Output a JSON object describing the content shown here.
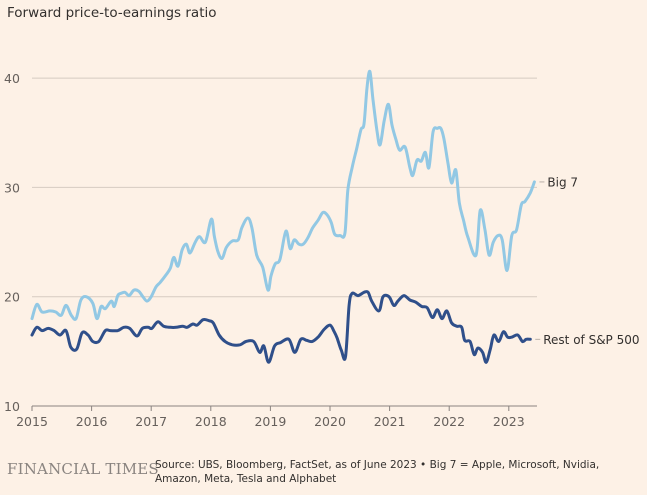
{
  "chart_data": {
    "type": "line",
    "title": "Forward price-to-earnings ratio",
    "xlabel": "",
    "ylabel": "",
    "ylim": [
      10,
      42
    ],
    "xlim": [
      2015,
      2023.6
    ],
    "grid": true,
    "yticks": [
      10,
      20,
      30,
      40
    ],
    "xticks": [
      2015,
      2016,
      2017,
      2018,
      2019,
      2020,
      2021,
      2022,
      2023
    ],
    "legend": "direct-labels-right",
    "series": [
      {
        "name": "Big 7",
        "color": "#92c8e4",
        "x": [
          2015.0,
          2015.08,
          2015.17,
          2015.3,
          2015.4,
          2015.49,
          2015.57,
          2015.66,
          2015.74,
          2015.82,
          2015.91,
          2016.02,
          2016.09,
          2016.16,
          2016.23,
          2016.33,
          2016.38,
          2016.44,
          2016.49,
          2016.56,
          2016.63,
          2016.71,
          2016.79,
          2016.86,
          2016.93,
          2017.0,
          2017.08,
          2017.15,
          2017.25,
          2017.32,
          2017.38,
          2017.45,
          2017.52,
          2017.59,
          2017.65,
          2017.74,
          2017.81,
          2017.91,
          2018.01,
          2018.06,
          2018.12,
          2018.19,
          2018.26,
          2018.36,
          2018.46,
          2018.52,
          2018.62,
          2018.69,
          2018.77,
          2018.87,
          2018.96,
          2019.01,
          2019.08,
          2019.16,
          2019.26,
          2019.33,
          2019.4,
          2019.48,
          2019.55,
          2019.63,
          2019.71,
          2019.8,
          2019.88,
          2019.95,
          2020.02,
          2020.08,
          2020.17,
          2020.25,
          2020.3,
          2020.38,
          2020.45,
          2020.52,
          2020.57,
          2020.62,
          2020.67,
          2020.72,
          2020.79,
          2020.84,
          2020.91,
          2020.98,
          2021.04,
          2021.11,
          2021.17,
          2021.26,
          2021.34,
          2021.39,
          2021.46,
          2021.53,
          2021.6,
          2021.66,
          2021.73,
          2021.8,
          2021.86,
          2021.91,
          2021.98,
          2022.04,
          2022.11,
          2022.17,
          2022.24,
          2022.31,
          2022.45,
          2022.52,
          2022.6,
          2022.67,
          2022.74,
          2022.82,
          2022.89,
          2022.97,
          2023.05,
          2023.13,
          2023.21,
          2023.27,
          2023.36,
          2023.43
        ],
        "values": [
          18.0,
          19.3,
          18.6,
          18.7,
          18.6,
          18.3,
          19.2,
          18.3,
          18.0,
          19.7,
          20.0,
          19.4,
          18.0,
          19.1,
          18.9,
          19.6,
          19.1,
          20.1,
          20.3,
          20.4,
          20.1,
          20.6,
          20.5,
          20.0,
          19.6,
          20.0,
          20.9,
          21.3,
          22.0,
          22.6,
          23.6,
          22.8,
          24.3,
          24.8,
          24.0,
          25.0,
          25.5,
          25.0,
          27.1,
          25.5,
          24.1,
          23.5,
          24.5,
          25.1,
          25.2,
          26.3,
          27.2,
          26.3,
          23.8,
          22.7,
          20.6,
          21.9,
          23.0,
          23.4,
          26.0,
          24.4,
          25.2,
          24.8,
          24.8,
          25.4,
          26.3,
          27.0,
          27.7,
          27.5,
          26.8,
          25.7,
          25.6,
          25.8,
          29.8,
          32.0,
          33.6,
          35.3,
          35.8,
          39.1,
          40.6,
          38.1,
          35.1,
          33.9,
          36.1,
          37.6,
          35.7,
          34.3,
          33.4,
          33.7,
          31.8,
          31.1,
          32.5,
          32.4,
          33.2,
          31.8,
          35.1,
          35.4,
          35.4,
          34.5,
          32.2,
          30.4,
          31.6,
          28.6,
          27.0,
          25.5,
          23.8,
          27.9,
          26.1,
          23.8,
          25.0,
          25.6,
          25.2,
          22.4,
          25.6,
          26.1,
          28.4,
          28.7,
          29.5,
          30.5
        ]
      },
      {
        "name": "Rest of S&P 500",
        "color": "#2f4f8a",
        "x": [
          2015.0,
          2015.08,
          2015.17,
          2015.27,
          2015.37,
          2015.47,
          2015.57,
          2015.65,
          2015.75,
          2015.84,
          2015.94,
          2016.02,
          2016.12,
          2016.23,
          2016.31,
          2016.44,
          2016.54,
          2016.64,
          2016.76,
          2016.85,
          2016.95,
          2017.01,
          2017.11,
          2017.21,
          2017.32,
          2017.42,
          2017.53,
          2017.6,
          2017.7,
          2017.77,
          2017.87,
          2017.97,
          2018.04,
          2018.14,
          2018.24,
          2018.36,
          2018.49,
          2018.59,
          2018.72,
          2018.82,
          2018.89,
          2018.97,
          2019.07,
          2019.17,
          2019.31,
          2019.41,
          2019.51,
          2019.61,
          2019.7,
          2019.8,
          2019.9,
          2020.0,
          2020.07,
          2020.12,
          2020.19,
          2020.26,
          2020.32,
          2020.37,
          2020.47,
          2020.57,
          2020.64,
          2020.7,
          2020.82,
          2020.89,
          2020.99,
          2021.07,
          2021.14,
          2021.24,
          2021.34,
          2021.44,
          2021.54,
          2021.63,
          2021.72,
          2021.8,
          2021.88,
          2021.96,
          2022.04,
          2022.13,
          2022.21,
          2022.26,
          2022.35,
          2022.42,
          2022.48,
          2022.56,
          2022.62,
          2022.69,
          2022.75,
          2022.83,
          2022.91,
          2022.98,
          2023.05,
          2023.15,
          2023.23,
          2023.29,
          2023.36
        ],
        "values": [
          16.5,
          17.2,
          16.9,
          17.1,
          16.9,
          16.5,
          16.9,
          15.4,
          15.2,
          16.7,
          16.5,
          15.9,
          15.9,
          16.9,
          16.9,
          16.9,
          17.2,
          17.1,
          16.4,
          17.1,
          17.2,
          17.1,
          17.7,
          17.3,
          17.2,
          17.2,
          17.3,
          17.2,
          17.5,
          17.4,
          17.9,
          17.8,
          17.6,
          16.5,
          15.9,
          15.6,
          15.6,
          15.9,
          15.9,
          14.9,
          15.5,
          14.0,
          15.5,
          15.8,
          16.1,
          14.9,
          16.1,
          16.0,
          15.9,
          16.3,
          17.0,
          17.4,
          16.8,
          16.2,
          15.1,
          14.5,
          19.2,
          20.3,
          20.1,
          20.4,
          20.4,
          19.6,
          18.7,
          20.0,
          20.0,
          19.2,
          19.6,
          20.1,
          19.7,
          19.5,
          19.1,
          19.0,
          18.1,
          18.8,
          18.0,
          18.7,
          17.6,
          17.3,
          17.2,
          16.0,
          15.9,
          14.7,
          15.3,
          14.9,
          14.0,
          15.2,
          16.5,
          15.9,
          16.8,
          16.3,
          16.3,
          16.5,
          15.9,
          16.1,
          16.1
        ]
      }
    ]
  },
  "footer": {
    "brand": "FINANCIAL TIMES",
    "source": "Source: UBS, Bloomberg, FactSet, as of June 2023 • Big 7 = Apple, Microsoft, Nvidia, Amazon, Meta, Tesla and Alphabet"
  }
}
